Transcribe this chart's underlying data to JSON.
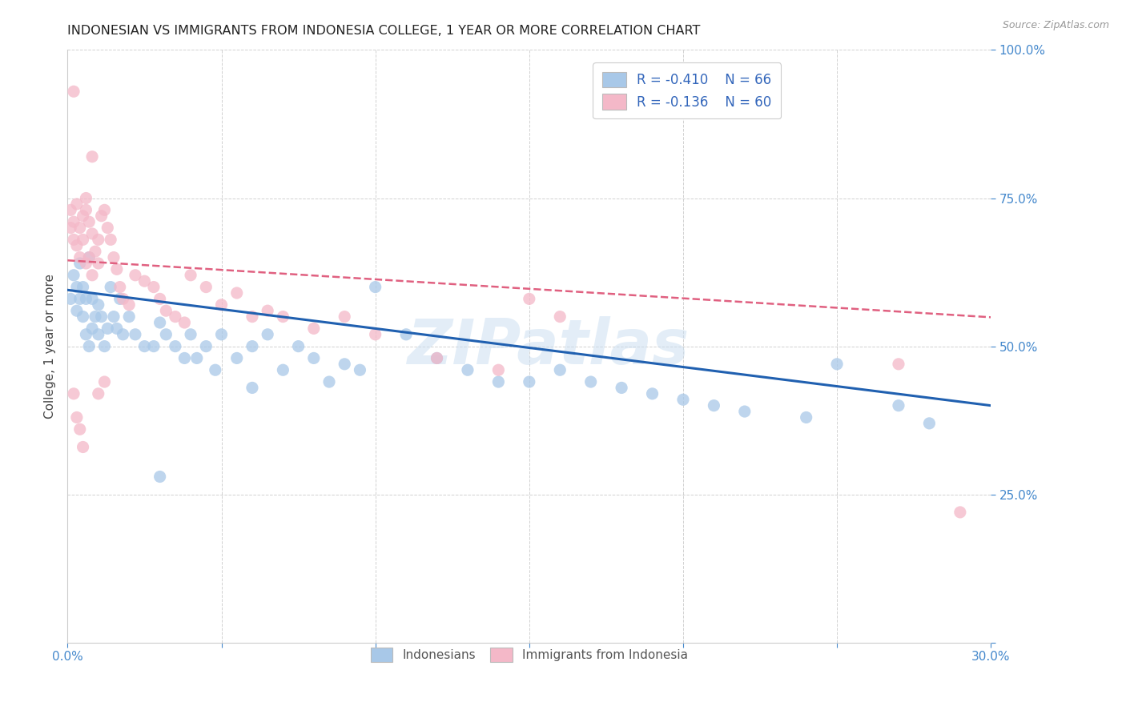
{
  "title": "INDONESIAN VS IMMIGRANTS FROM INDONESIA COLLEGE, 1 YEAR OR MORE CORRELATION CHART",
  "source": "Source: ZipAtlas.com",
  "ylabel": "College, 1 year or more",
  "x_min": 0.0,
  "x_max": 0.3,
  "y_min": 0.0,
  "y_max": 1.0,
  "blue_color": "#a8c8e8",
  "pink_color": "#f4b8c8",
  "blue_line_color": "#2060b0",
  "pink_line_color": "#e06080",
  "legend_R1": "-0.410",
  "legend_N1": "66",
  "legend_R2": "-0.136",
  "legend_N2": "60",
  "watermark": "ZIPatlas",
  "blue_intercept": 0.595,
  "blue_slope": -0.65,
  "pink_intercept": 0.645,
  "pink_slope": -0.32,
  "blue_x": [
    0.001,
    0.002,
    0.003,
    0.003,
    0.004,
    0.004,
    0.005,
    0.005,
    0.006,
    0.006,
    0.007,
    0.007,
    0.008,
    0.008,
    0.009,
    0.01,
    0.01,
    0.011,
    0.012,
    0.013,
    0.014,
    0.015,
    0.016,
    0.017,
    0.018,
    0.02,
    0.022,
    0.025,
    0.028,
    0.03,
    0.032,
    0.035,
    0.038,
    0.04,
    0.042,
    0.045,
    0.048,
    0.05,
    0.055,
    0.06,
    0.065,
    0.07,
    0.075,
    0.08,
    0.085,
    0.09,
    0.095,
    0.1,
    0.11,
    0.12,
    0.13,
    0.14,
    0.15,
    0.16,
    0.17,
    0.18,
    0.19,
    0.2,
    0.21,
    0.22,
    0.24,
    0.25,
    0.27,
    0.28,
    0.06,
    0.03
  ],
  "blue_y": [
    0.58,
    0.62,
    0.56,
    0.6,
    0.64,
    0.58,
    0.55,
    0.6,
    0.52,
    0.58,
    0.65,
    0.5,
    0.53,
    0.58,
    0.55,
    0.57,
    0.52,
    0.55,
    0.5,
    0.53,
    0.6,
    0.55,
    0.53,
    0.58,
    0.52,
    0.55,
    0.52,
    0.5,
    0.5,
    0.54,
    0.52,
    0.5,
    0.48,
    0.52,
    0.48,
    0.5,
    0.46,
    0.52,
    0.48,
    0.5,
    0.52,
    0.46,
    0.5,
    0.48,
    0.44,
    0.47,
    0.46,
    0.6,
    0.52,
    0.48,
    0.46,
    0.44,
    0.44,
    0.46,
    0.44,
    0.43,
    0.42,
    0.41,
    0.4,
    0.39,
    0.38,
    0.47,
    0.4,
    0.37,
    0.43,
    0.28
  ],
  "pink_x": [
    0.001,
    0.001,
    0.002,
    0.002,
    0.002,
    0.003,
    0.003,
    0.004,
    0.004,
    0.005,
    0.005,
    0.006,
    0.006,
    0.007,
    0.007,
    0.008,
    0.008,
    0.009,
    0.01,
    0.01,
    0.011,
    0.012,
    0.013,
    0.014,
    0.015,
    0.016,
    0.017,
    0.018,
    0.02,
    0.022,
    0.025,
    0.028,
    0.03,
    0.032,
    0.035,
    0.038,
    0.04,
    0.045,
    0.05,
    0.055,
    0.06,
    0.065,
    0.07,
    0.08,
    0.09,
    0.1,
    0.12,
    0.14,
    0.15,
    0.16,
    0.002,
    0.003,
    0.004,
    0.005,
    0.006,
    0.008,
    0.01,
    0.012,
    0.27,
    0.29
  ],
  "pink_y": [
    0.7,
    0.73,
    0.68,
    0.71,
    0.93,
    0.67,
    0.74,
    0.65,
    0.7,
    0.72,
    0.68,
    0.73,
    0.64,
    0.71,
    0.65,
    0.69,
    0.62,
    0.66,
    0.64,
    0.68,
    0.72,
    0.73,
    0.7,
    0.68,
    0.65,
    0.63,
    0.6,
    0.58,
    0.57,
    0.62,
    0.61,
    0.6,
    0.58,
    0.56,
    0.55,
    0.54,
    0.62,
    0.6,
    0.57,
    0.59,
    0.55,
    0.56,
    0.55,
    0.53,
    0.55,
    0.52,
    0.48,
    0.46,
    0.58,
    0.55,
    0.42,
    0.38,
    0.36,
    0.33,
    0.75,
    0.82,
    0.42,
    0.44,
    0.47,
    0.22
  ]
}
